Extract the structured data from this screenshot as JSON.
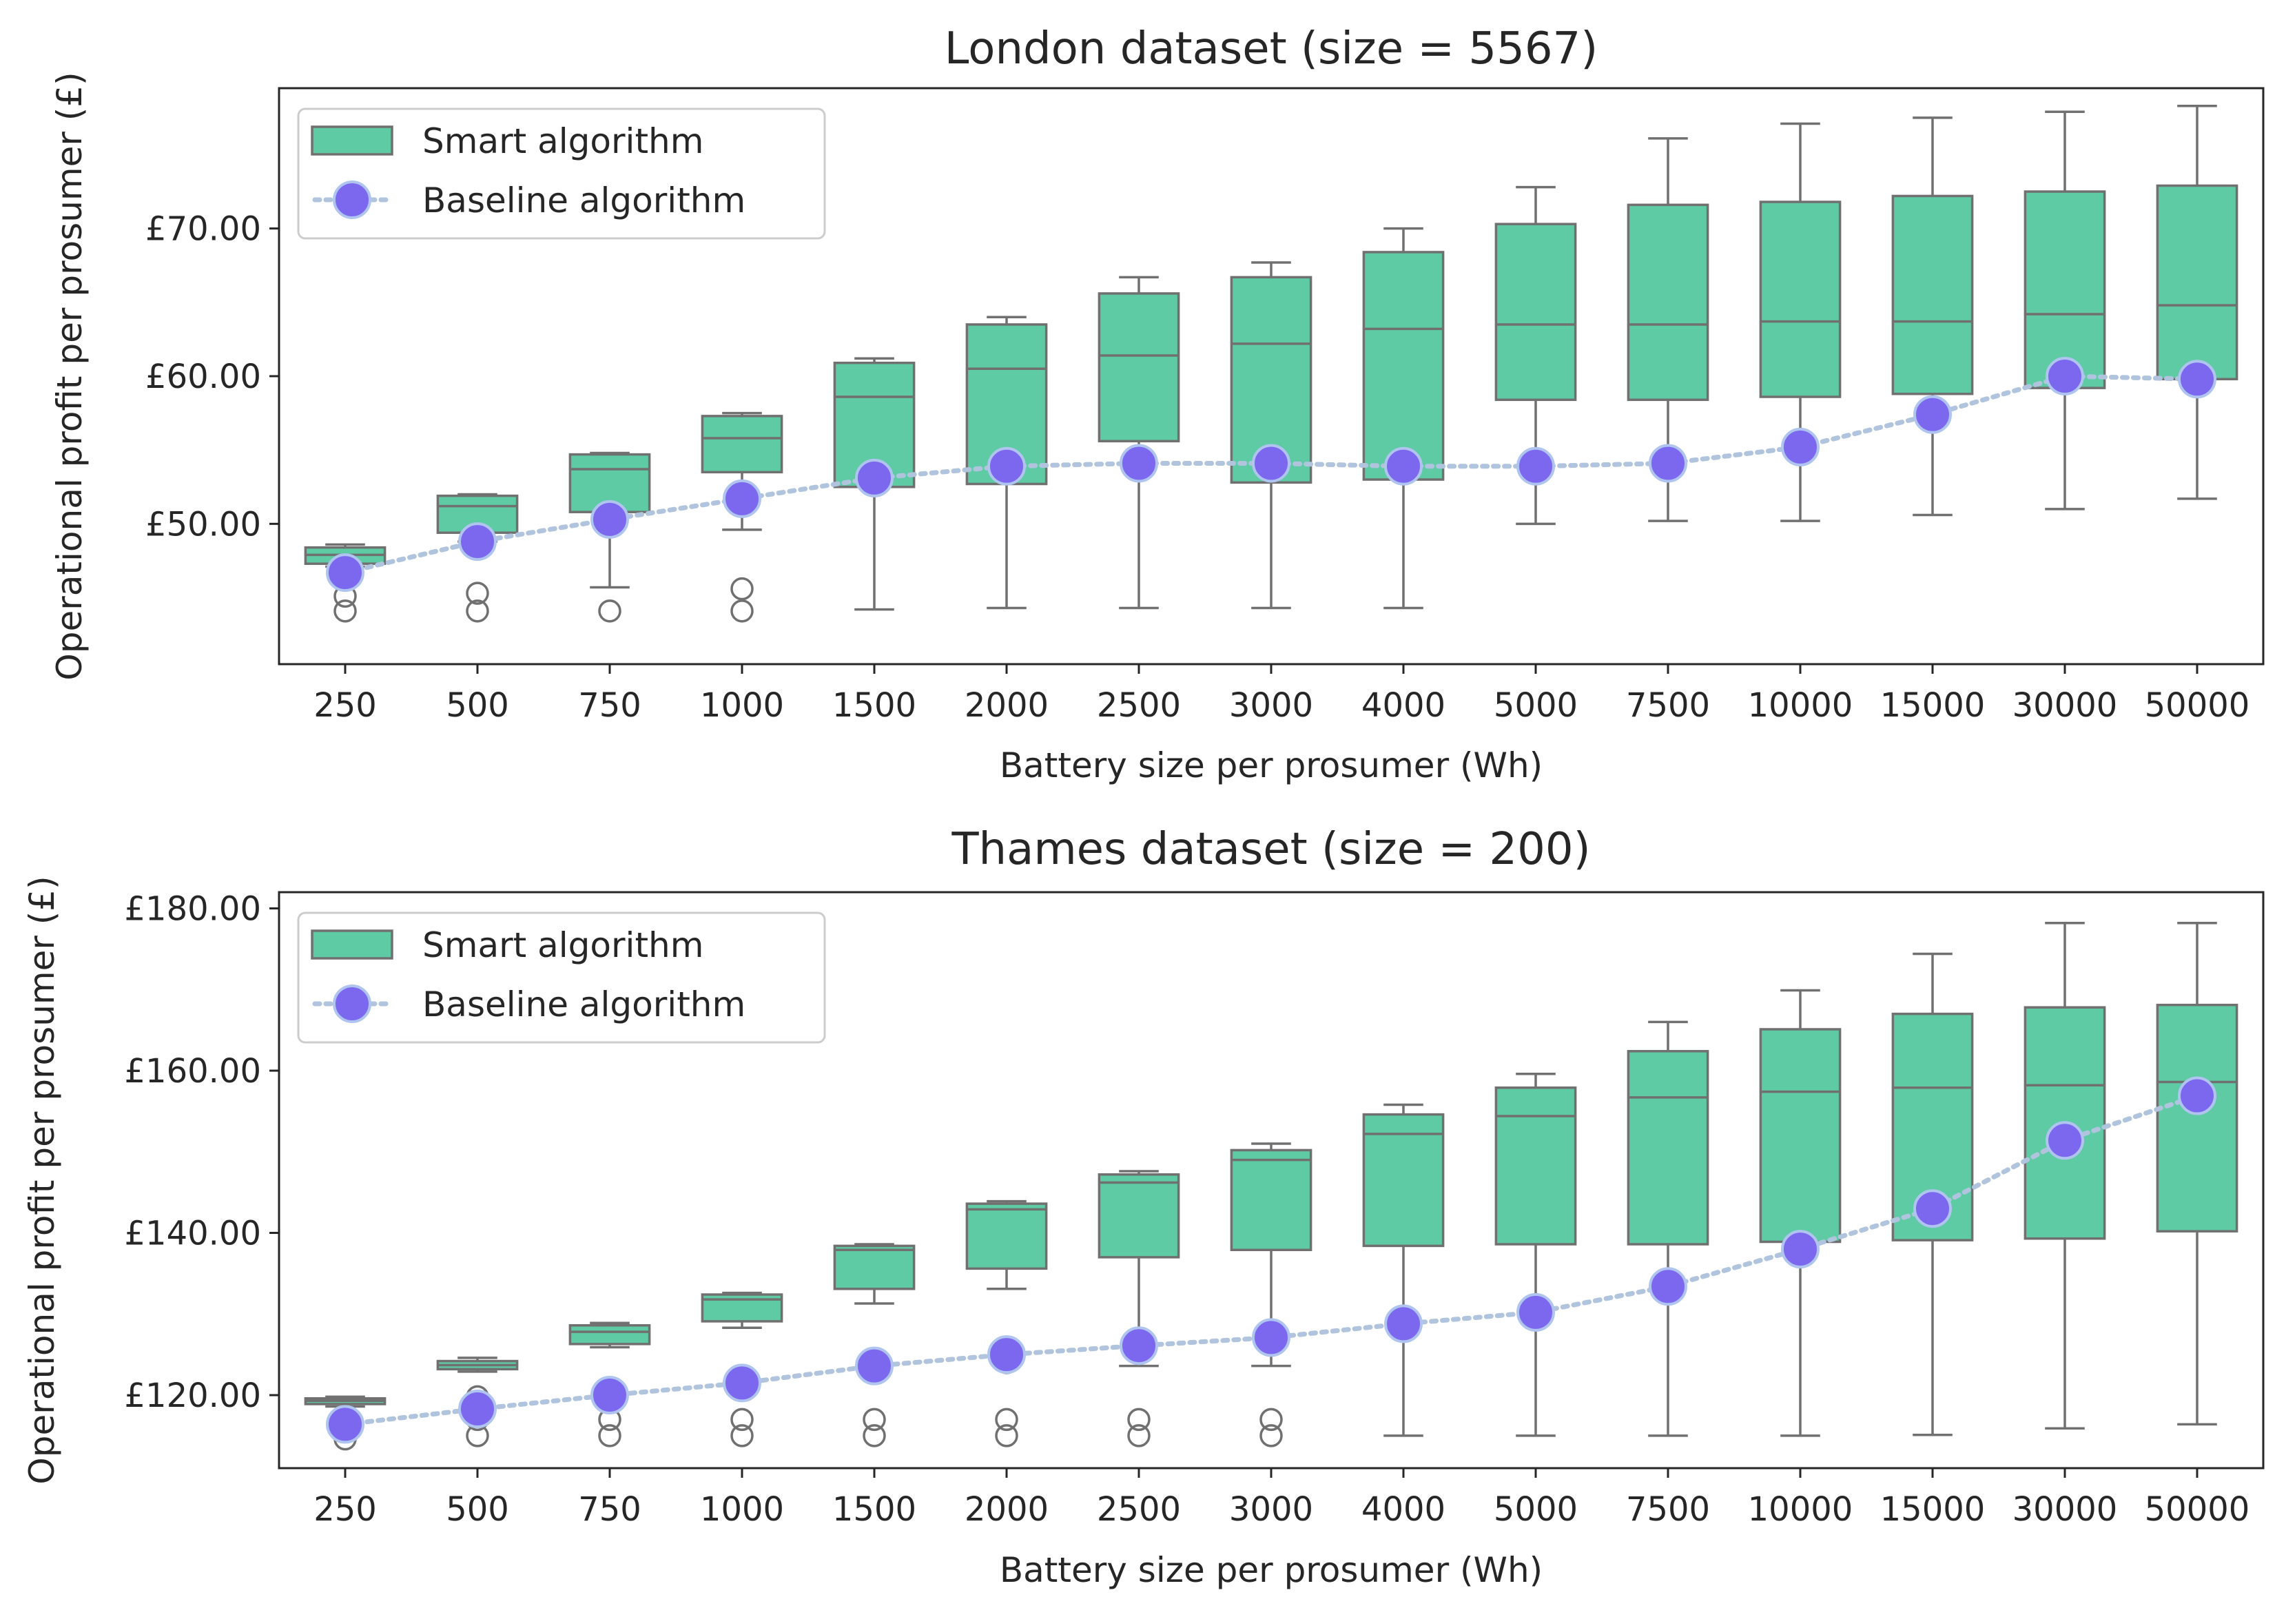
{
  "colors": {
    "box_fill": "#5ecba5",
    "box_edge": "#707070",
    "baseline_marker": "#7b68ee",
    "baseline_edge": "#b0c4f0",
    "baseline_line": "#b0c4de",
    "axes": "#262626"
  },
  "chart_data": [
    {
      "type": "box",
      "title": "London dataset (size = 5567)",
      "xlabel": "Battery size per prosumer (Wh)",
      "ylabel": "Operational profit per prosumer (£)",
      "ylim": [
        40.5,
        79.5
      ],
      "yticks": [
        50,
        60,
        70
      ],
      "ytick_labels": [
        "£50.00",
        "£60.00",
        "£70.00"
      ],
      "legend": {
        "location": "top-left",
        "entries": [
          "Smart algorithm",
          "Baseline algorithm"
        ]
      },
      "categories": [
        "250",
        "500",
        "750",
        "1000",
        "1500",
        "2000",
        "2500",
        "3000",
        "4000",
        "5000",
        "7500",
        "10000",
        "15000",
        "30000",
        "50000"
      ],
      "smart_algorithm": [
        {
          "whislo": 47.1,
          "q1": 47.3,
          "med": 47.9,
          "q3": 48.4,
          "whishi": 48.6,
          "fliers": [
            45.1,
            44.1
          ]
        },
        {
          "whislo": 48.8,
          "q1": 49.4,
          "med": 51.2,
          "q3": 51.9,
          "whishi": 52.0,
          "fliers": [
            45.3,
            44.1
          ]
        },
        {
          "whislo": 45.7,
          "q1": 50.8,
          "med": 53.7,
          "q3": 54.7,
          "whishi": 54.8,
          "fliers": [
            44.1
          ]
        },
        {
          "whislo": 49.6,
          "q1": 53.5,
          "med": 55.8,
          "q3": 57.3,
          "whishi": 57.5,
          "fliers": [
            45.6,
            44.1
          ]
        },
        {
          "whislo": 44.2,
          "q1": 52.5,
          "med": 58.6,
          "q3": 60.9,
          "whishi": 61.2,
          "fliers": []
        },
        {
          "whislo": 44.3,
          "q1": 52.7,
          "med": 60.5,
          "q3": 63.5,
          "whishi": 64.0,
          "fliers": []
        },
        {
          "whislo": 44.3,
          "q1": 55.6,
          "med": 61.4,
          "q3": 65.6,
          "whishi": 66.7,
          "fliers": []
        },
        {
          "whislo": 44.3,
          "q1": 52.8,
          "med": 62.2,
          "q3": 66.7,
          "whishi": 67.7,
          "fliers": []
        },
        {
          "whislo": 44.3,
          "q1": 53.0,
          "med": 63.2,
          "q3": 68.4,
          "whishi": 70.0,
          "fliers": []
        },
        {
          "whislo": 50.0,
          "q1": 58.4,
          "med": 63.5,
          "q3": 70.3,
          "whishi": 72.8,
          "fliers": []
        },
        {
          "whislo": 50.2,
          "q1": 58.4,
          "med": 63.5,
          "q3": 71.6,
          "whishi": 76.1,
          "fliers": []
        },
        {
          "whislo": 50.2,
          "q1": 58.6,
          "med": 63.7,
          "q3": 71.8,
          "whishi": 77.1,
          "fliers": []
        },
        {
          "whislo": 50.6,
          "q1": 58.8,
          "med": 63.7,
          "q3": 72.2,
          "whishi": 77.5,
          "fliers": []
        },
        {
          "whislo": 51.0,
          "q1": 59.2,
          "med": 64.2,
          "q3": 72.5,
          "whishi": 77.9,
          "fliers": []
        },
        {
          "whislo": 51.7,
          "q1": 59.8,
          "med": 64.8,
          "q3": 72.9,
          "whishi": 78.3,
          "fliers": []
        }
      ],
      "baseline_algorithm": [
        46.7,
        48.8,
        50.3,
        51.7,
        53.1,
        53.9,
        54.1,
        54.1,
        53.9,
        53.9,
        54.1,
        55.2,
        57.4,
        60.0,
        59.8
      ]
    },
    {
      "type": "box",
      "title": "Thames dataset (size = 200)",
      "xlabel": "Battery size per prosumer (Wh)",
      "ylabel": "Operational profit per prosumer (£)",
      "ylim": [
        111,
        182
      ],
      "yticks": [
        120,
        140,
        160,
        180
      ],
      "ytick_labels": [
        "£120.00",
        "£140.00",
        "£160.00",
        "£180.00"
      ],
      "legend": {
        "location": "top-left",
        "entries": [
          "Smart algorithm",
          "Baseline algorithm"
        ]
      },
      "categories": [
        "250",
        "500",
        "750",
        "1000",
        "1500",
        "2000",
        "2500",
        "3000",
        "4000",
        "5000",
        "7500",
        "10000",
        "15000",
        "30000",
        "50000"
      ],
      "smart_algorithm": [
        {
          "whislo": 118.6,
          "q1": 118.9,
          "med": 119.3,
          "q3": 119.6,
          "whishi": 119.8,
          "fliers": [
            115.6,
            114.6
          ]
        },
        {
          "whislo": 122.9,
          "q1": 123.2,
          "med": 123.7,
          "q3": 124.2,
          "whishi": 124.6,
          "fliers": [
            119.8,
            117.0,
            115.0
          ]
        },
        {
          "whislo": 125.9,
          "q1": 126.3,
          "med": 127.8,
          "q3": 128.6,
          "whishi": 128.9,
          "fliers": [
            120.7,
            117.0,
            115.0
          ]
        },
        {
          "whislo": 128.3,
          "q1": 129.1,
          "med": 131.8,
          "q3": 132.4,
          "whishi": 132.6,
          "fliers": [
            117.0,
            115.0
          ]
        },
        {
          "whislo": 131.3,
          "q1": 133.1,
          "med": 137.9,
          "q3": 138.4,
          "whishi": 138.6,
          "fliers": [
            117.0,
            115.0
          ]
        },
        {
          "whislo": 133.1,
          "q1": 135.6,
          "med": 142.9,
          "q3": 143.6,
          "whishi": 143.9,
          "fliers": [
            124.0,
            117.0,
            115.0
          ]
        },
        {
          "whislo": 123.6,
          "q1": 137.0,
          "med": 146.2,
          "q3": 147.2,
          "whishi": 147.6,
          "fliers": [
            117.0,
            115.0
          ]
        },
        {
          "whislo": 123.6,
          "q1": 137.9,
          "med": 149.0,
          "q3": 150.2,
          "whishi": 151.0,
          "fliers": [
            117.0,
            115.0
          ]
        },
        {
          "whislo": 115.0,
          "q1": 138.4,
          "med": 152.2,
          "q3": 154.6,
          "whishi": 155.8,
          "fliers": []
        },
        {
          "whislo": 115.0,
          "q1": 138.6,
          "med": 154.4,
          "q3": 157.9,
          "whishi": 159.6,
          "fliers": []
        },
        {
          "whislo": 115.0,
          "q1": 138.6,
          "med": 156.7,
          "q3": 162.4,
          "whishi": 166.0,
          "fliers": []
        },
        {
          "whislo": 115.0,
          "q1": 138.9,
          "med": 157.4,
          "q3": 165.1,
          "whishi": 169.9,
          "fliers": []
        },
        {
          "whislo": 115.1,
          "q1": 139.1,
          "med": 157.9,
          "q3": 167.0,
          "whishi": 174.4,
          "fliers": []
        },
        {
          "whislo": 115.9,
          "q1": 139.3,
          "med": 158.2,
          "q3": 167.8,
          "whishi": 178.2,
          "fliers": []
        },
        {
          "whislo": 116.4,
          "q1": 140.2,
          "med": 158.6,
          "q3": 168.1,
          "whishi": 178.2,
          "fliers": []
        }
      ],
      "baseline_algorithm": [
        116.4,
        118.3,
        120.0,
        121.5,
        123.6,
        125.0,
        126.1,
        127.1,
        128.8,
        130.2,
        133.4,
        138.0,
        143.0,
        151.4,
        156.9
      ]
    }
  ]
}
